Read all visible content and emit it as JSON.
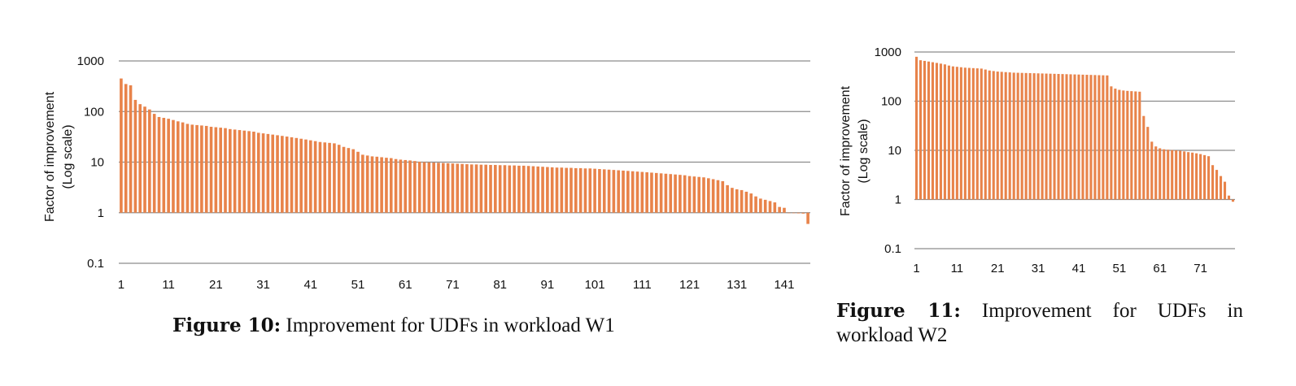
{
  "chart_data": [
    {
      "type": "bar",
      "ylabel_line1": "Factor of improvement",
      "ylabel_line2": "(Log scale)",
      "yscale": "log",
      "ylim": [
        0.1,
        1000
      ],
      "yticks": [
        "1000",
        "100",
        "10",
        "1",
        "0.1"
      ],
      "xticks": [
        "1",
        "11",
        "21",
        "31",
        "41",
        "51",
        "61",
        "71",
        "81",
        "91",
        "101",
        "111",
        "121",
        "131",
        "141"
      ],
      "grid": true,
      "bar_color": "#e8834a",
      "x": [
        1,
        2,
        3,
        4,
        5,
        6,
        7,
        8,
        9,
        10,
        11,
        12,
        13,
        14,
        15,
        16,
        17,
        18,
        19,
        20,
        21,
        22,
        23,
        24,
        25,
        26,
        27,
        28,
        29,
        30,
        31,
        32,
        33,
        34,
        35,
        36,
        37,
        38,
        39,
        40,
        41,
        42,
        43,
        44,
        45,
        46,
        47,
        48,
        49,
        50,
        51,
        52,
        53,
        54,
        55,
        56,
        57,
        58,
        59,
        60,
        61,
        62,
        63,
        64,
        65,
        66,
        67,
        68,
        69,
        70,
        71,
        72,
        73,
        74,
        75,
        76,
        77,
        78,
        79,
        80,
        81,
        82,
        83,
        84,
        85,
        86,
        87,
        88,
        89,
        90,
        91,
        92,
        93,
        94,
        95,
        96,
        97,
        98,
        99,
        100,
        101,
        102,
        103,
        104,
        105,
        106,
        107,
        108,
        109,
        110,
        111,
        112,
        113,
        114,
        115,
        116,
        117,
        118,
        119,
        120,
        121,
        122,
        123,
        124,
        125,
        126,
        127,
        128,
        129,
        130,
        131,
        132,
        133,
        134,
        135,
        136,
        137,
        138,
        139,
        140,
        141,
        142,
        143,
        144,
        145,
        146
      ],
      "values": [
        450,
        350,
        330,
        170,
        140,
        125,
        110,
        90,
        78,
        75,
        72,
        68,
        64,
        61,
        57,
        55,
        54,
        53,
        52,
        50,
        49,
        48,
        47,
        45,
        44,
        43,
        42,
        41,
        40,
        38,
        37,
        36,
        35,
        34,
        33,
        32,
        31,
        30,
        29,
        28,
        27,
        26,
        25,
        24.5,
        24,
        23.5,
        22,
        20,
        19,
        18,
        16,
        14,
        13.5,
        13,
        12.8,
        12.5,
        12.2,
        12,
        11.5,
        11.2,
        11,
        10.8,
        10.5,
        10.2,
        10,
        9.9,
        9.8,
        9.7,
        9.6,
        9.5,
        9.4,
        9.3,
        9.2,
        9.1,
        9,
        9,
        8.9,
        8.9,
        8.8,
        8.8,
        8.7,
        8.7,
        8.6,
        8.6,
        8.5,
        8.5,
        8.4,
        8.3,
        8.2,
        8.1,
        8,
        7.9,
        7.8,
        7.8,
        7.7,
        7.7,
        7.6,
        7.6,
        7.5,
        7.5,
        7.4,
        7.3,
        7.2,
        7.1,
        7,
        6.9,
        6.8,
        6.7,
        6.6,
        6.5,
        6.4,
        6.3,
        6.2,
        6.1,
        6,
        5.9,
        5.8,
        5.7,
        5.6,
        5.5,
        5.3,
        5.2,
        5.1,
        5,
        4.8,
        4.6,
        4.4,
        4.2,
        3.5,
        3.1,
        2.9,
        2.8,
        2.6,
        2.4,
        2.1,
        1.9,
        1.8,
        1.7,
        1.6,
        1.3,
        1.25,
        1.0,
        0.98,
        0.97,
        0.96,
        0.6
      ]
    },
    {
      "type": "bar",
      "ylabel_line1": "Factor of improvement",
      "ylabel_line2": "(Log scale)",
      "yscale": "log",
      "ylim": [
        0.1,
        1000
      ],
      "yticks": [
        "1000",
        "100",
        "10",
        "1",
        "0.1"
      ],
      "xticks": [
        "1",
        "11",
        "21",
        "31",
        "41",
        "51",
        "61",
        "71"
      ],
      "grid": true,
      "bar_color": "#e8834a",
      "x": [
        1,
        2,
        3,
        4,
        5,
        6,
        7,
        8,
        9,
        10,
        11,
        12,
        13,
        14,
        15,
        16,
        17,
        18,
        19,
        20,
        21,
        22,
        23,
        24,
        25,
        26,
        27,
        28,
        29,
        30,
        31,
        32,
        33,
        34,
        35,
        36,
        37,
        38,
        39,
        40,
        41,
        42,
        43,
        44,
        45,
        46,
        47,
        48,
        49,
        50,
        51,
        52,
        53,
        54,
        55,
        56,
        57,
        58,
        59,
        60,
        61,
        62,
        63,
        64,
        65,
        66,
        67,
        68,
        69,
        70,
        71,
        72,
        73,
        74,
        75,
        76,
        77,
        78,
        79
      ],
      "values": [
        800,
        680,
        660,
        640,
        620,
        600,
        580,
        560,
        530,
        510,
        500,
        490,
        480,
        475,
        470,
        465,
        460,
        440,
        420,
        410,
        400,
        395,
        390,
        385,
        380,
        378,
        376,
        374,
        372,
        370,
        368,
        366,
        364,
        362,
        360,
        358,
        356,
        354,
        352,
        350,
        348,
        346,
        344,
        342,
        340,
        338,
        336,
        334,
        200,
        180,
        170,
        165,
        162,
        160,
        158,
        156,
        50,
        30,
        15,
        12,
        11,
        10.5,
        10.3,
        10.1,
        10,
        9.8,
        9.5,
        9.2,
        9,
        8.7,
        8.4,
        8,
        7.6,
        5,
        4,
        3,
        2.3,
        1.2,
        0.9
      ]
    }
  ],
  "captions": [
    {
      "label": "Figure 10:",
      "text": " Improvement for UDFs in workload W1"
    },
    {
      "label": "Figure 11:",
      "text": " Improvement for UDFs in workload W2"
    }
  ]
}
